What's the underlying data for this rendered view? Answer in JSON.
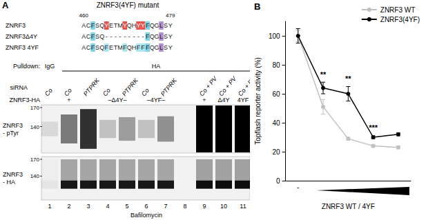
{
  "panel_labels": [
    "A",
    "B"
  ],
  "figure_a": {
    "title": "ZNRF3(4YF) mutant",
    "residue_range": [
      460,
      479
    ],
    "alignment": [
      {
        "name": "ZNRF3",
        "sequence": "ACFSQYETMYQHYYFQGLSY",
        "highlights": [
          {
            "positions": [
              2,
              14
            ],
            "color": "#7fd3e6"
          },
          {
            "positions": [
              5,
              9,
              12,
              13
            ],
            "color": "#e8524a"
          },
          {
            "positions": [
              17
            ],
            "color": "#b08fd0"
          }
        ]
      },
      {
        "name": "ZNRF3Δ4Y",
        "sequence": "ACFSQ---------FQGLSY",
        "highlights": [
          {
            "positions": [
              2,
              14
            ],
            "color": "#7fd3e6"
          },
          {
            "positions": [
              17
            ],
            "color": "#b08fd0"
          }
        ]
      },
      {
        "name": "ZNRF3 4YF",
        "sequence": "ACFSQFETMFQHFFFQGLSY",
        "highlights": [
          {
            "positions": [
              2,
              14
            ],
            "color": "#7fd3e6"
          },
          {
            "positions": [
              5,
              9,
              12,
              13
            ],
            "color": "#a8e6f2"
          },
          {
            "positions": [
              17
            ],
            "color": "#b08fd0"
          }
        ]
      }
    ],
    "pulldown": {
      "label": "Pulldown:",
      "groups": [
        {
          "text": "IgG",
          "from": 1,
          "to": 1
        },
        {
          "text": "HA",
          "from": 2,
          "to": 11
        }
      ]
    },
    "sirna": {
      "label": "siRNA",
      "lanes": [
        "Co",
        "Co",
        "PTPRK",
        "Co",
        "PTPRK",
        "Co",
        "PTPRK",
        null,
        "Co + PV",
        "Co + PV",
        "Co + PV"
      ]
    },
    "construct": {
      "label": "ZNRF3-HA",
      "groups": [
        {
          "text": "+",
          "from": 1,
          "to": 3
        },
        {
          "text": "–Δ4Y–",
          "from": 4,
          "to": 5
        },
        {
          "text": "–4YF–",
          "from": 6,
          "to": 7
        },
        {
          "text": "+",
          "from": 9,
          "to": 9
        },
        {
          "text": "Δ4Y",
          "from": 10,
          "to": 10
        },
        {
          "text": "4YF",
          "from": 11,
          "to": 11
        }
      ]
    },
    "blots": [
      {
        "label": [
          "ZNRF3",
          "- pTyr"
        ],
        "markers": [
          170,
          140
        ],
        "intensity": [
          0.1,
          0.5,
          0.8,
          0.2,
          0.35,
          0.2,
          0.4,
          0,
          1,
          1,
          1
        ]
      },
      {
        "label": [
          "ZNRF3",
          "- HA"
        ],
        "markers": [
          170,
          140
        ],
        "intensity": [
          0.05,
          0.9,
          0.9,
          0.9,
          0.9,
          0.9,
          0.9,
          0,
          0.95,
          0.95,
          0.95
        ]
      }
    ],
    "lane_numbers": [
      1,
      2,
      3,
      4,
      5,
      6,
      7,
      8,
      9,
      10,
      11
    ],
    "treatment": "Bafilomycin"
  },
  "chart_data": {
    "type": "line",
    "ylabel": "Topflash reporter activity (%)",
    "xlabel": "ZNRF3 WT / 4YF",
    "categories": [
      "-",
      null,
      null,
      null,
      null
    ],
    "ylim": [
      0,
      110
    ],
    "yticks": [
      0,
      20,
      40,
      60,
      80,
      100
    ],
    "grid": false,
    "legend": "top-right",
    "series": [
      {
        "name": "ZNRF3 WT",
        "color": "#c0c0c0",
        "marker": "circle",
        "line_style": "solid",
        "values": [
          100,
          51,
          29,
          24,
          23
        ],
        "errors": [
          4,
          5,
          1,
          1,
          1
        ]
      },
      {
        "name": "ZNRF3(4YF)",
        "color": "#000000",
        "marker": "circle",
        "line_style": "solid",
        "values": [
          100,
          64,
          60,
          30,
          32
        ],
        "errors": [
          5,
          4,
          5,
          1,
          1
        ],
        "significance": [
          null,
          "**",
          "**",
          "***",
          null
        ]
      }
    ]
  }
}
